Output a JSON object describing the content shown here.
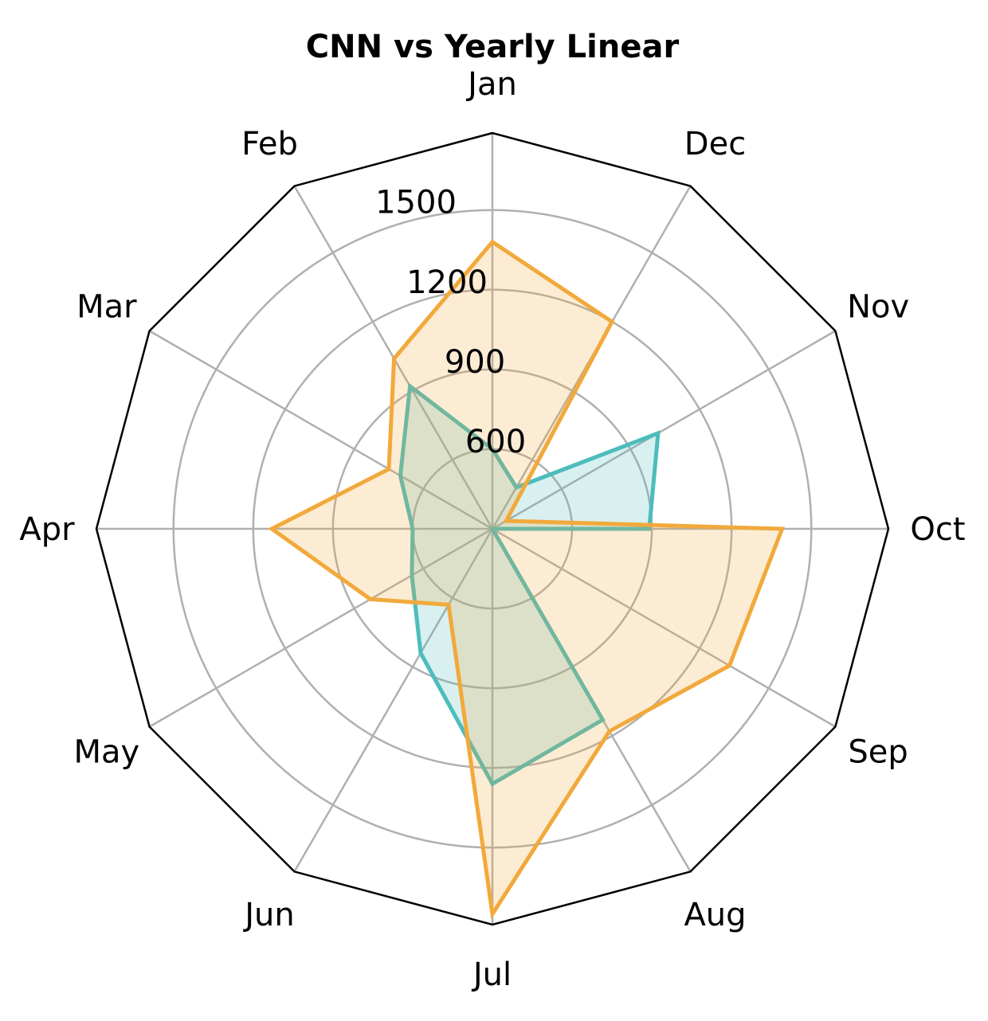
{
  "chart_data": {
    "type": "radar",
    "title": "CNN vs Yearly Linear",
    "categories": [
      "Jan",
      "Feb",
      "Mar",
      "Apr",
      "May",
      "Jun",
      "Jul",
      "Aug",
      "Sep",
      "Oct",
      "Nov",
      "Dec"
    ],
    "radial_ticks": [
      "600",
      "900",
      "1200",
      "1500"
    ],
    "radial_tick_values": [
      600,
      900,
      1200,
      1500
    ],
    "rlim": [
      300,
      1790
    ],
    "grid": true,
    "series": [
      {
        "values": [
          600,
          920,
          700,
          600,
          650,
          840,
          1260,
          1130,
          300,
          890,
          1020,
          480
        ],
        "color": "#4dbcbc",
        "fill": "#4dbcbc",
        "fill_opacity": 0.22
      },
      {
        "values": [
          1380,
          1040,
          750,
          1130,
          830,
          630,
          1750,
          1180,
          1330,
          1390,
          360,
          1200
        ],
        "color": "#f2a93b",
        "fill": "#f2a93b",
        "fill_opacity": 0.22
      }
    ]
  }
}
